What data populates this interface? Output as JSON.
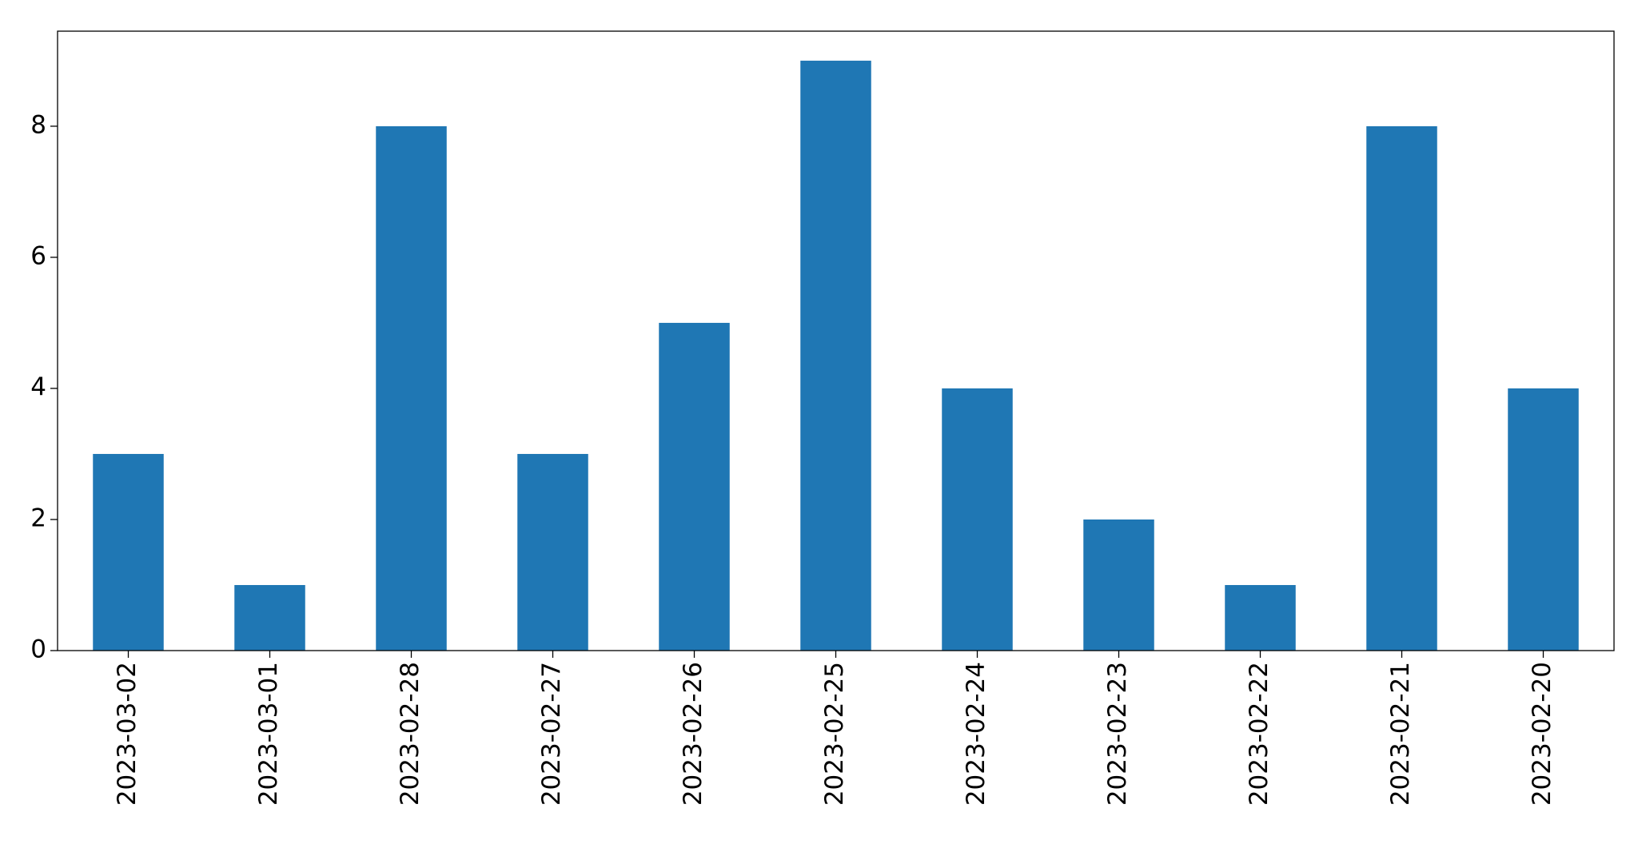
{
  "chart_data": {
    "type": "bar",
    "categories": [
      "2023-03-02",
      "2023-03-01",
      "2023-02-28",
      "2023-02-27",
      "2023-02-26",
      "2023-02-25",
      "2023-02-24",
      "2023-02-23",
      "2023-02-22",
      "2023-02-21",
      "2023-02-20"
    ],
    "values": [
      3,
      1,
      8,
      3,
      5,
      9,
      4,
      2,
      1,
      8,
      4
    ],
    "color": "#1f77b4",
    "ylim": [
      0,
      9.45
    ],
    "yticks": [
      0,
      2,
      4,
      6,
      8
    ],
    "grid": false
  }
}
